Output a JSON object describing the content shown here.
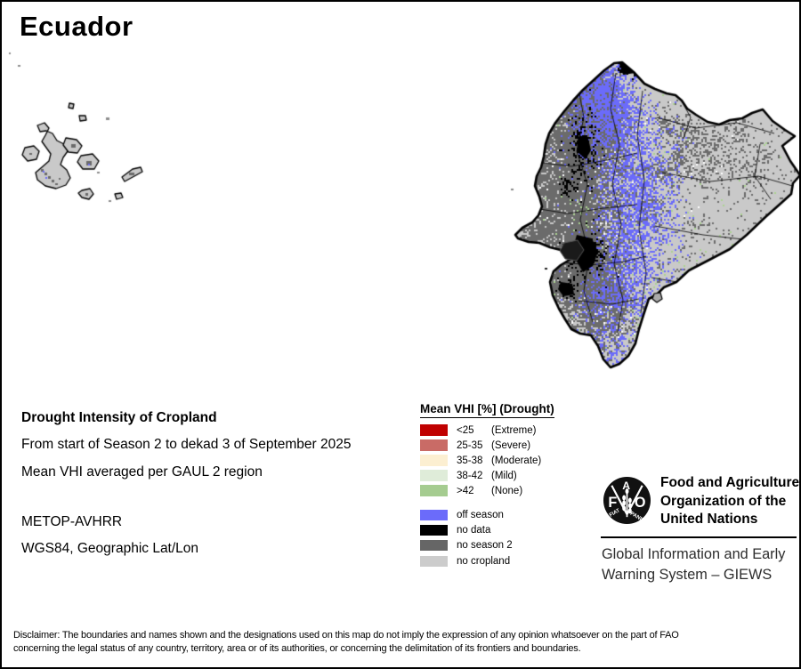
{
  "title": "Ecuador",
  "info_block": {
    "heading": "Drought Intensity of Cropland",
    "period": "From start of Season 2 to dekad 3 of September 2025",
    "aggregation": "Mean VHI averaged per GAUL 2 region",
    "sensor": "METOP-AVHRR",
    "projection": "WGS84, Geographic Lat/Lon"
  },
  "legend": {
    "title": "Mean VHI [%] (Drought)",
    "classes": [
      {
        "value": "<25",
        "label": "(Extreme)",
        "color": "#c00000"
      },
      {
        "value": "25-35",
        "label": "(Severe)",
        "color": "#c96b66"
      },
      {
        "value": "35-38",
        "label": "(Moderate)",
        "color": "#fcefd1"
      },
      {
        "value": "38-42",
        "label": "(Mild)",
        "color": "#dfecd9"
      },
      {
        "value": ">42",
        "label": "(None)",
        "color": "#a5cc90"
      }
    ],
    "extras": [
      {
        "label": "off season",
        "color": "#6b6bfa"
      },
      {
        "label": "no data",
        "color": "#000000"
      },
      {
        "label": "no season 2",
        "color": "#666666"
      },
      {
        "label": "no cropland",
        "color": "#cccccc"
      }
    ]
  },
  "footer": {
    "fao_logo": {
      "f": "F",
      "a": "A",
      "o": "O",
      "motto1": "FIAT",
      "motto2": "PANIS"
    },
    "fao_name": [
      "Food and Agriculture",
      "Organization of the",
      "United Nations"
    ],
    "giews": [
      "Global Information and Early",
      "Warning System – GIEWS"
    ]
  },
  "disclaimer": [
    "Disclaimer: The boundaries and names shown and the designations used on this map do not imply the expression of any opinion whatsoever on the part of FAO",
    "concerning the legal status of any country, territory, area or of its authorities, or concerning the delimitation of its frontiers and boundaries."
  ],
  "map": {
    "palette": {
      "no_cropland": "#c9c9c9",
      "no_season2": "#6b6b6b",
      "off_season": "#6b6bfa",
      "no_data": "#000000",
      "none_green": "#abd392",
      "white": "#ffffff",
      "boundary": "#000000"
    }
  }
}
